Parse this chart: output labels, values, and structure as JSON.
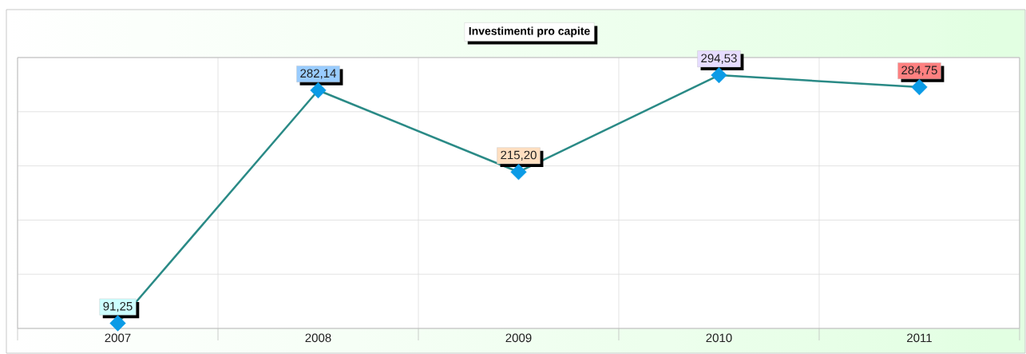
{
  "chart_data": {
    "type": "line",
    "title": "Investimenti pro capite",
    "categories": [
      "2007",
      "2008",
      "2009",
      "2010",
      "2011"
    ],
    "series": [
      {
        "color": "#2a8a86",
        "colors": [
          "#0b9be6",
          "#0b9be6",
          "#0b9be6",
          "#0b9be6",
          "#0b9be6"
        ],
        "values": [
          91.25,
          282.14,
          215.2,
          294.53,
          284.75
        ],
        "value_labels": [
          "91,25",
          "282,14",
          "215,20",
          "294,53",
          "284,75"
        ]
      }
    ],
    "ylim": [
      87,
      309
    ],
    "yticks": [
      {
        "value": 87,
        "label": null
      },
      {
        "value": 131.4,
        "label": null
      },
      {
        "value": 175.8,
        "label": null
      },
      {
        "value": 220.2,
        "label": null
      },
      {
        "value": 264.6,
        "label": null
      },
      {
        "value": 309,
        "label": null
      }
    ],
    "grid": true,
    "marker": "diamond"
  }
}
